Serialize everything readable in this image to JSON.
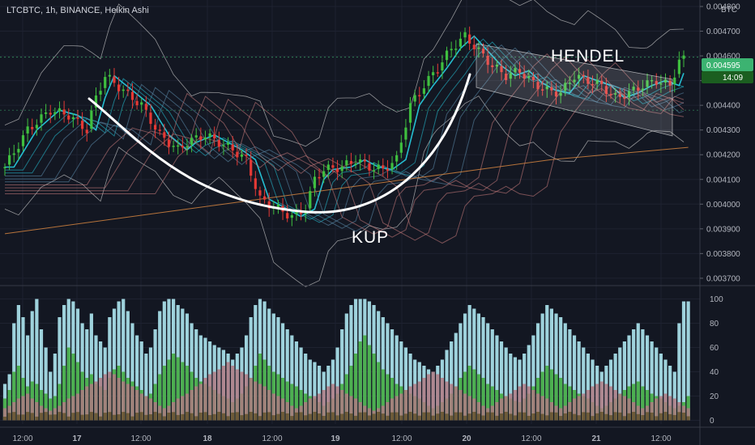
{
  "header": {
    "title": "LTCBTC, 1h, BINANCE, Heikin Ashi",
    "currency": "BTC"
  },
  "chart_data": [
    {
      "type": "candlestick",
      "title": "LTCBTC, 1h, BINANCE, Heikin Ashi",
      "ylim": [
        0.00368,
        0.0048
      ],
      "y_ticks": [
        "0.004800",
        "0.004700",
        "0.004600",
        "0.004500",
        "0.004400",
        "0.004300",
        "0.004200",
        "0.004100",
        "0.004000",
        "0.003900",
        "0.003800",
        "0.003700"
      ],
      "y_tick_values": [
        0.0048,
        0.0047,
        0.0046,
        0.0045,
        0.0044,
        0.0043,
        0.0042,
        0.0041,
        0.004,
        0.0039,
        0.0038,
        0.0037
      ],
      "x_ticks": [
        "12:00",
        "17",
        "12:00",
        "18",
        "12:00",
        "19",
        "12:00",
        "20",
        "12:00",
        "21",
        "12:00"
      ],
      "last_price": "0.004595",
      "countdown": "14:09",
      "annotations": [
        {
          "text": "HENDEL"
        },
        {
          "text": "KUP"
        }
      ],
      "close_path": [
        [
          0,
          0.00415
        ],
        [
          5,
          0.0043
        ],
        [
          10,
          0.00438
        ],
        [
          14,
          0.00436
        ],
        [
          18,
          0.0043
        ],
        [
          20,
          0.00443
        ],
        [
          22,
          0.00452
        ],
        [
          26,
          0.00446
        ],
        [
          30,
          0.0044
        ],
        [
          34,
          0.00428
        ],
        [
          38,
          0.00422
        ],
        [
          40,
          0.00425
        ],
        [
          44,
          0.00428
        ],
        [
          47,
          0.00425
        ],
        [
          50,
          0.00422
        ],
        [
          53,
          0.00418
        ],
        [
          56,
          0.00402
        ],
        [
          60,
          0.00398
        ],
        [
          63,
          0.00395
        ],
        [
          66,
          0.00398
        ],
        [
          68,
          0.0041
        ],
        [
          70,
          0.00414
        ],
        [
          74,
          0.00415
        ],
        [
          77,
          0.00418
        ],
        [
          80,
          0.00415
        ],
        [
          83,
          0.00414
        ],
        [
          86,
          0.00418
        ],
        [
          89,
          0.0044
        ],
        [
          92,
          0.00448
        ],
        [
          95,
          0.00455
        ],
        [
          98,
          0.00463
        ],
        [
          101,
          0.00468
        ],
        [
          104,
          0.00462
        ],
        [
          107,
          0.00456
        ],
        [
          110,
          0.00452
        ],
        [
          113,
          0.00454
        ],
        [
          116,
          0.00449
        ],
        [
          119,
          0.00446
        ],
        [
          122,
          0.00445
        ],
        [
          125,
          0.00452
        ],
        [
          128,
          0.0045
        ],
        [
          131,
          0.00448
        ],
        [
          134,
          0.00443
        ],
        [
          137,
          0.00445
        ],
        [
          140,
          0.00448
        ],
        [
          143,
          0.0045
        ],
        [
          146,
          0.00448
        ],
        [
          148,
          0.00458
        ],
        [
          150,
          0.00459
        ]
      ],
      "moving_average": [
        [
          0,
          0.00388
        ],
        [
          40,
          0.00398
        ],
        [
          80,
          0.00408
        ],
        [
          120,
          0.00418
        ],
        [
          150,
          0.00423
        ]
      ]
    },
    {
      "type": "bar",
      "ylim": [
        -3,
        105
      ],
      "y_ticks": [
        "100",
        "80",
        "60",
        "40",
        "20",
        "0"
      ],
      "y_tick_values": [
        100,
        80,
        60,
        40,
        20,
        0
      ],
      "series": [
        {
          "values": [
            18,
            25,
            40,
            45,
            35,
            28,
            32,
            30,
            25,
            22,
            18,
            20,
            30,
            45,
            60,
            55,
            48,
            40,
            35,
            38,
            30,
            28,
            25,
            35,
            42,
            45,
            40,
            35,
            32,
            28,
            25,
            20,
            22,
            30,
            38,
            45,
            50,
            55,
            52,
            48,
            45,
            40,
            35,
            32,
            30,
            28,
            25,
            22,
            20,
            18,
            15,
            18,
            22,
            28,
            35,
            45,
            55,
            50,
            45,
            40,
            38,
            35,
            32,
            30,
            28,
            25,
            22,
            20,
            18,
            15,
            12,
            15,
            18,
            22,
            30,
            38,
            45,
            55,
            65,
            70,
            62,
            55,
            48,
            42,
            38,
            35,
            30,
            28,
            25,
            22,
            20,
            18,
            15,
            12,
            10,
            12,
            15,
            18,
            22,
            28,
            35,
            40,
            45,
            42,
            38,
            35,
            30,
            28,
            25,
            22,
            20,
            18,
            16,
            15,
            18,
            22,
            28,
            35,
            40,
            45,
            42,
            38,
            35,
            30,
            28,
            25,
            22,
            20,
            18,
            15,
            12,
            10,
            12,
            15,
            18,
            22,
            25,
            28,
            30,
            32,
            28,
            25,
            22,
            20,
            18,
            15,
            12,
            10,
            12,
            15,
            20
          ]
        },
        {
          "values": [
            10,
            12,
            15,
            18,
            20,
            22,
            18,
            15,
            12,
            10,
            8,
            10,
            12,
            15,
            18,
            20,
            22,
            25,
            28,
            30,
            32,
            35,
            38,
            40,
            38,
            35,
            32,
            30,
            28,
            25,
            22,
            20,
            18,
            15,
            12,
            10,
            12,
            15,
            18,
            20,
            22,
            25,
            28,
            30,
            35,
            38,
            40,
            42,
            45,
            48,
            45,
            42,
            40,
            38,
            35,
            32,
            30,
            28,
            25,
            22,
            20,
            18,
            15,
            12,
            10,
            12,
            15,
            18,
            20,
            22,
            25,
            28,
            30,
            28,
            25,
            22,
            20,
            18,
            15,
            12,
            10,
            8,
            10,
            12,
            15,
            18,
            20,
            22,
            25,
            28,
            30,
            32,
            35,
            38,
            40,
            38,
            35,
            32,
            30,
            28,
            25,
            22,
            20,
            18,
            15,
            12,
            10,
            12,
            15,
            18,
            20,
            22,
            25,
            28,
            30,
            28,
            25,
            22,
            20,
            18,
            15,
            12,
            10,
            12,
            15,
            18,
            20,
            22,
            25,
            28,
            30,
            32,
            30,
            28,
            25,
            22,
            20,
            18,
            15,
            12,
            10,
            12,
            15,
            18,
            20,
            22,
            20,
            18,
            15,
            12,
            10
          ]
        },
        {
          "values": [
            30,
            38,
            80,
            95,
            85,
            70,
            90,
            100,
            75,
            60,
            40,
            55,
            85,
            95,
            100,
            98,
            92,
            80,
            75,
            88,
            70,
            65,
            60,
            85,
            92,
            98,
            100,
            90,
            80,
            70,
            65,
            55,
            60,
            75,
            90,
            98,
            100,
            100,
            95,
            92,
            88,
            80,
            75,
            70,
            68,
            65,
            62,
            60,
            58,
            55,
            50,
            55,
            60,
            70,
            85,
            95,
            100,
            98,
            92,
            88,
            85,
            80,
            75,
            70,
            65,
            60,
            55,
            50,
            48,
            45,
            40,
            45,
            50,
            60,
            75,
            88,
            95,
            100,
            100,
            100,
            98,
            95,
            90,
            85,
            80,
            75,
            70,
            65,
            60,
            55,
            50,
            48,
            45,
            42,
            40,
            45,
            50,
            58,
            65,
            72,
            80,
            88,
            95,
            92,
            88,
            85,
            80,
            75,
            70,
            65,
            60,
            55,
            52,
            50,
            55,
            62,
            70,
            80,
            88,
            95,
            92,
            88,
            85,
            80,
            75,
            70,
            65,
            60,
            55,
            50,
            45,
            40,
            45,
            50,
            55,
            60,
            65,
            70,
            75,
            80,
            75,
            70,
            65,
            60,
            55,
            50,
            45,
            40,
            80,
            98,
            98
          ]
        }
      ]
    }
  ],
  "colors": {
    "background": "#131722",
    "grid": "#1e2230",
    "axis_text": "#b2b5be",
    "candle_up": "#26a69a",
    "heikin_up": "#3fbf3f",
    "heikin_down": "#e53935",
    "ribbon_fast": "#26c6da",
    "ribbon_slow": "#d08080",
    "ma_long": "#d4843f",
    "bollinger": "#c8c8c8",
    "cup": "#ffffff",
    "channel": "#ffffff",
    "price_tag": "#3cb371",
    "countdown_tag": "#1b5e20",
    "volume_blue": "#9ed2dc",
    "volume_green": "#4caf50",
    "volume_pink": "#b07a82",
    "volume_brown": "#6d5a38"
  }
}
